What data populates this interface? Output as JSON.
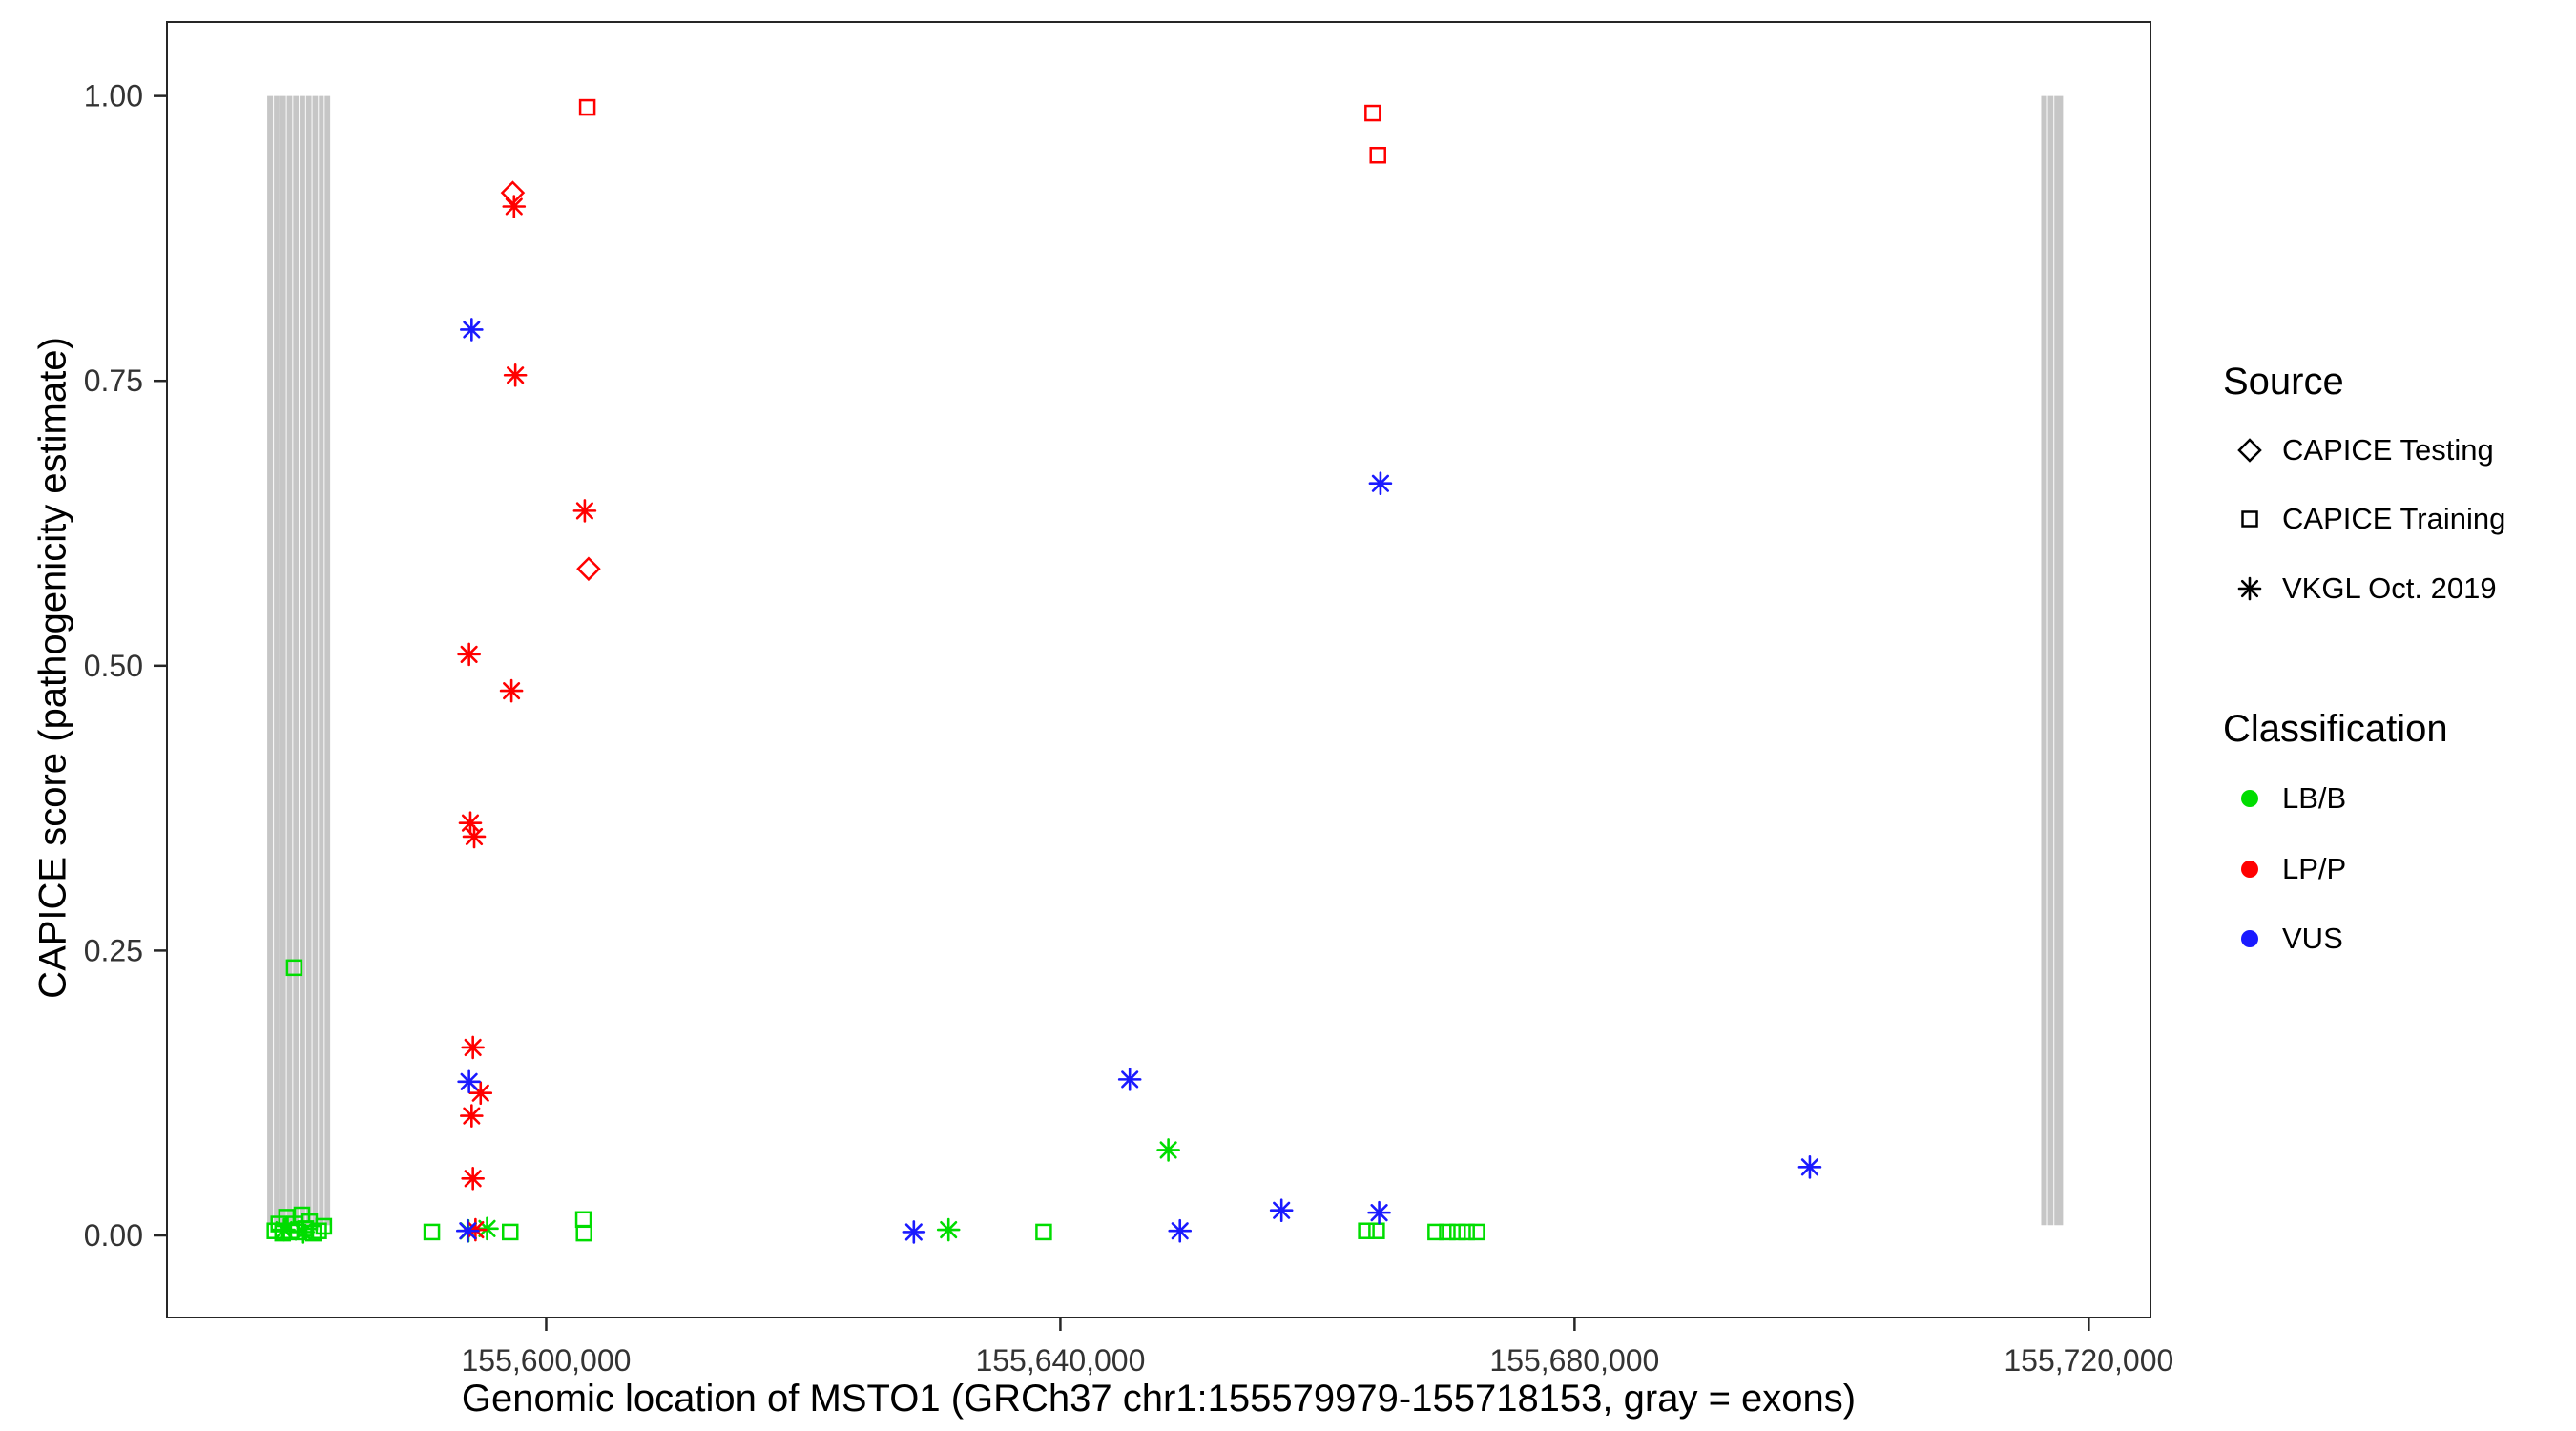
{
  "legend": {
    "source": {
      "title": "Source",
      "items": [
        {
          "label": "CAPICE Testing",
          "marker": "diamond"
        },
        {
          "label": "CAPICE Training",
          "marker": "square"
        },
        {
          "label": "VKGL Oct. 2019",
          "marker": "asterisk"
        }
      ]
    },
    "classification": {
      "title": "Classification",
      "items": [
        {
          "label": "LB/B",
          "color": "#00dd00"
        },
        {
          "label": "LP/P",
          "color": "#ff0000"
        },
        {
          "label": "VUS",
          "color": "#1a1aff"
        }
      ]
    }
  },
  "chart_data": {
    "type": "scatter",
    "xlabel": "Genomic location of MSTO1 (GRCh37 chr1:155579979-155718153, gray = exons)",
    "ylabel": "CAPICE score (pathogenicity estimate)",
    "x_domain": [
      155570500,
      155724800
    ],
    "y_domain": [
      -0.072,
      1.065
    ],
    "x_ticks": [
      {
        "value": 155600000,
        "label": "155,600,000"
      },
      {
        "value": 155640000,
        "label": "155,640,000"
      },
      {
        "value": 155680000,
        "label": "155,680,000"
      },
      {
        "value": 155720000,
        "label": "155,720,000"
      }
    ],
    "y_ticks": [
      {
        "value": 0.0,
        "label": "0.00"
      },
      {
        "value": 0.25,
        "label": "0.25"
      },
      {
        "value": 0.5,
        "label": "0.50"
      },
      {
        "value": 0.75,
        "label": "0.75"
      },
      {
        "value": 1.0,
        "label": "1.00"
      }
    ],
    "grid": "off",
    "legend_position": "right",
    "exons": {
      "color": "#c6c6c6",
      "y_from": 0.009,
      "y_to": 1.0,
      "regions": [
        [
          155578300,
          155578750
        ],
        [
          155578820,
          155579250
        ],
        [
          155579320,
          155579750
        ],
        [
          155579820,
          155580250
        ],
        [
          155580320,
          155580750
        ],
        [
          155580820,
          155581250
        ],
        [
          155581320,
          155581750
        ],
        [
          155581820,
          155582250
        ],
        [
          155582320,
          155582700
        ],
        [
          155582770,
          155583200
        ],
        [
          155716300,
          155716750
        ],
        [
          155716820,
          155717250
        ],
        [
          155717320,
          155718000
        ]
      ]
    },
    "classification_colors": {
      "LB/B": "#00dd00",
      "LP/P": "#ff0000",
      "VUS": "#1a1aff"
    },
    "source_markers": {
      "testing": "diamond",
      "training": "square",
      "vkgl": "asterisk"
    },
    "points": [
      {
        "x": 155578900,
        "y": 0.004,
        "cls": "LB/B",
        "source": "training"
      },
      {
        "x": 155579200,
        "y": 0.01,
        "cls": "LB/B",
        "source": "training"
      },
      {
        "x": 155579500,
        "y": 0.002,
        "cls": "LB/B",
        "source": "training"
      },
      {
        "x": 155579800,
        "y": 0.016,
        "cls": "LB/B",
        "source": "training"
      },
      {
        "x": 155580100,
        "y": 0.004,
        "cls": "LB/B",
        "source": "training"
      },
      {
        "x": 155580400,
        "y": 0.235,
        "cls": "LB/B",
        "source": "training"
      },
      {
        "x": 155580450,
        "y": 0.01,
        "cls": "LB/B",
        "source": "training"
      },
      {
        "x": 155580700,
        "y": 0.003,
        "cls": "LB/B",
        "source": "training"
      },
      {
        "x": 155581000,
        "y": 0.018,
        "cls": "LB/B",
        "source": "training"
      },
      {
        "x": 155581300,
        "y": 0.006,
        "cls": "LB/B",
        "source": "training"
      },
      {
        "x": 155581600,
        "y": 0.012,
        "cls": "LB/B",
        "source": "training"
      },
      {
        "x": 155581900,
        "y": 0.002,
        "cls": "LB/B",
        "source": "training"
      },
      {
        "x": 155582300,
        "y": 0.004,
        "cls": "LB/B",
        "source": "training"
      },
      {
        "x": 155582700,
        "y": 0.008,
        "cls": "LB/B",
        "source": "training"
      },
      {
        "x": 155579600,
        "y": 0.005,
        "cls": "LB/B",
        "source": "vkgl"
      },
      {
        "x": 155581100,
        "y": 0.003,
        "cls": "LB/B",
        "source": "vkgl"
      },
      {
        "x": 155591100,
        "y": 0.003,
        "cls": "LB/B",
        "source": "training"
      },
      {
        "x": 155593950,
        "y": 0.004,
        "cls": "LB/B",
        "source": "vkgl"
      },
      {
        "x": 155595400,
        "y": 0.006,
        "cls": "LB/B",
        "source": "vkgl"
      },
      {
        "x": 155597200,
        "y": 0.003,
        "cls": "LB/B",
        "source": "training"
      },
      {
        "x": 155602900,
        "y": 0.014,
        "cls": "LB/B",
        "source": "training"
      },
      {
        "x": 155602950,
        "y": 0.002,
        "cls": "LB/B",
        "source": "training"
      },
      {
        "x": 155631300,
        "y": 0.005,
        "cls": "LB/B",
        "source": "vkgl"
      },
      {
        "x": 155638700,
        "y": 0.003,
        "cls": "LB/B",
        "source": "training"
      },
      {
        "x": 155648400,
        "y": 0.075,
        "cls": "LB/B",
        "source": "vkgl"
      },
      {
        "x": 155663800,
        "y": 0.004,
        "cls": "LB/B",
        "source": "training"
      },
      {
        "x": 155664600,
        "y": 0.004,
        "cls": "LB/B",
        "source": "training"
      },
      {
        "x": 155669200,
        "y": 0.003,
        "cls": "LB/B",
        "source": "training"
      },
      {
        "x": 155670100,
        "y": 0.003,
        "cls": "LB/B",
        "source": "training"
      },
      {
        "x": 155670900,
        "y": 0.003,
        "cls": "LB/B",
        "source": "training"
      },
      {
        "x": 155671600,
        "y": 0.003,
        "cls": "LB/B",
        "source": "training"
      },
      {
        "x": 155672400,
        "y": 0.003,
        "cls": "LB/B",
        "source": "training"
      },
      {
        "x": 155603200,
        "y": 0.99,
        "cls": "LP/P",
        "source": "training"
      },
      {
        "x": 155664300,
        "y": 0.985,
        "cls": "LP/P",
        "source": "training"
      },
      {
        "x": 155664700,
        "y": 0.948,
        "cls": "LP/P",
        "source": "training"
      },
      {
        "x": 155597400,
        "y": 0.915,
        "cls": "LP/P",
        "source": "testing"
      },
      {
        "x": 155597500,
        "y": 0.903,
        "cls": "LP/P",
        "source": "vkgl"
      },
      {
        "x": 155597600,
        "y": 0.755,
        "cls": "LP/P",
        "source": "vkgl"
      },
      {
        "x": 155603000,
        "y": 0.636,
        "cls": "LP/P",
        "source": "vkgl"
      },
      {
        "x": 155603300,
        "y": 0.585,
        "cls": "LP/P",
        "source": "testing"
      },
      {
        "x": 155594000,
        "y": 0.51,
        "cls": "LP/P",
        "source": "vkgl"
      },
      {
        "x": 155597300,
        "y": 0.478,
        "cls": "LP/P",
        "source": "vkgl"
      },
      {
        "x": 155594100,
        "y": 0.362,
        "cls": "LP/P",
        "source": "vkgl"
      },
      {
        "x": 155594400,
        "y": 0.35,
        "cls": "LP/P",
        "source": "vkgl"
      },
      {
        "x": 155594300,
        "y": 0.165,
        "cls": "LP/P",
        "source": "vkgl"
      },
      {
        "x": 155594900,
        "y": 0.125,
        "cls": "LP/P",
        "source": "vkgl"
      },
      {
        "x": 155594200,
        "y": 0.105,
        "cls": "LP/P",
        "source": "vkgl"
      },
      {
        "x": 155594300,
        "y": 0.05,
        "cls": "LP/P",
        "source": "vkgl"
      },
      {
        "x": 155594500,
        "y": 0.005,
        "cls": "LP/P",
        "source": "vkgl"
      },
      {
        "x": 155594200,
        "y": 0.795,
        "cls": "VUS",
        "source": "vkgl"
      },
      {
        "x": 155664900,
        "y": 0.66,
        "cls": "VUS",
        "source": "vkgl"
      },
      {
        "x": 155594000,
        "y": 0.135,
        "cls": "VUS",
        "source": "vkgl"
      },
      {
        "x": 155645400,
        "y": 0.137,
        "cls": "VUS",
        "source": "vkgl"
      },
      {
        "x": 155698300,
        "y": 0.06,
        "cls": "VUS",
        "source": "vkgl"
      },
      {
        "x": 155657200,
        "y": 0.022,
        "cls": "VUS",
        "source": "vkgl"
      },
      {
        "x": 155664800,
        "y": 0.02,
        "cls": "VUS",
        "source": "vkgl"
      },
      {
        "x": 155628600,
        "y": 0.003,
        "cls": "VUS",
        "source": "vkgl"
      },
      {
        "x": 155649300,
        "y": 0.004,
        "cls": "VUS",
        "source": "vkgl"
      },
      {
        "x": 155593900,
        "y": 0.004,
        "cls": "VUS",
        "source": "vkgl"
      }
    ],
    "style": {
      "panel_border_color": "#262626",
      "tick_color": "#262626",
      "tick_label_color": "#333333",
      "legend_marker_color": "#000000"
    }
  }
}
